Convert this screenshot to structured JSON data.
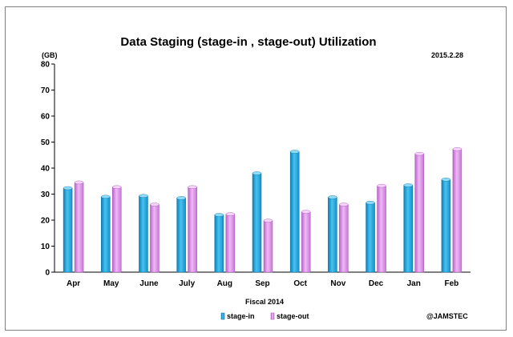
{
  "chart_data": {
    "type": "bar",
    "title": "Data Staging  (stage-in , stage-out) Utilization",
    "date_label": "2015.2.28",
    "unit_label": "(GB)",
    "xlabel": "Fiscal 2014",
    "credit": "@JAMSTEC",
    "ylim": [
      0,
      80
    ],
    "yticks": [
      0,
      10,
      20,
      30,
      40,
      50,
      60,
      70,
      80
    ],
    "grid": false,
    "legend_position": "bottom-center",
    "categories": [
      "Apr",
      "May",
      "June",
      "July",
      "Aug",
      "Sep",
      "Oct",
      "Nov",
      "Dec",
      "Jan",
      "Feb"
    ],
    "series": [
      {
        "name": "stage-in",
        "color": "#1aa3dc",
        "values": [
          32.3,
          29.0,
          29.3,
          28.5,
          22.0,
          38.0,
          46.3,
          28.8,
          26.7,
          33.4,
          35.6
        ]
      },
      {
        "name": "stage-out",
        "color": "#d98de6",
        "values": [
          34.5,
          32.7,
          26.0,
          32.7,
          22.3,
          19.8,
          23.2,
          26.0,
          33.2,
          45.5,
          47.3
        ]
      }
    ]
  }
}
